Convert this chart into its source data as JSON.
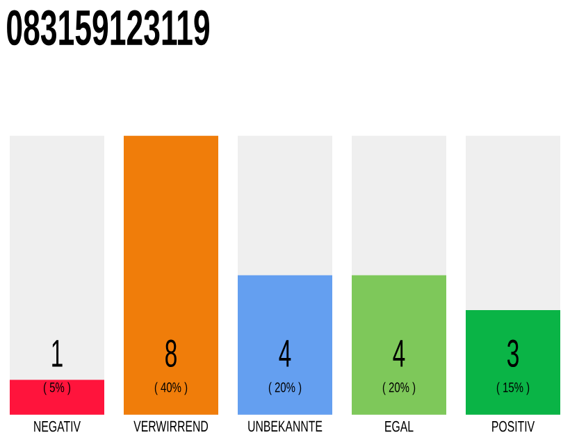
{
  "chart_data": {
    "type": "bar",
    "title": "083159123119",
    "categories": [
      "NEGATIV",
      "VERWIRREND",
      "UNBEKANNTE",
      "EGAL",
      "POSITIV"
    ],
    "values": [
      5,
      40,
      20,
      20,
      15
    ],
    "colors": [
      "#ff143c",
      "#f07d0a",
      "#649ff0",
      "#7ec85a",
      "#0ab446"
    ],
    "value_labels": [
      "( 5% )",
      "( 40% )",
      "( 20% )",
      "( 20% )",
      "( 15% )"
    ],
    "annotations": [
      "1",
      "8",
      "4",
      "4",
      "3"
    ]
  }
}
